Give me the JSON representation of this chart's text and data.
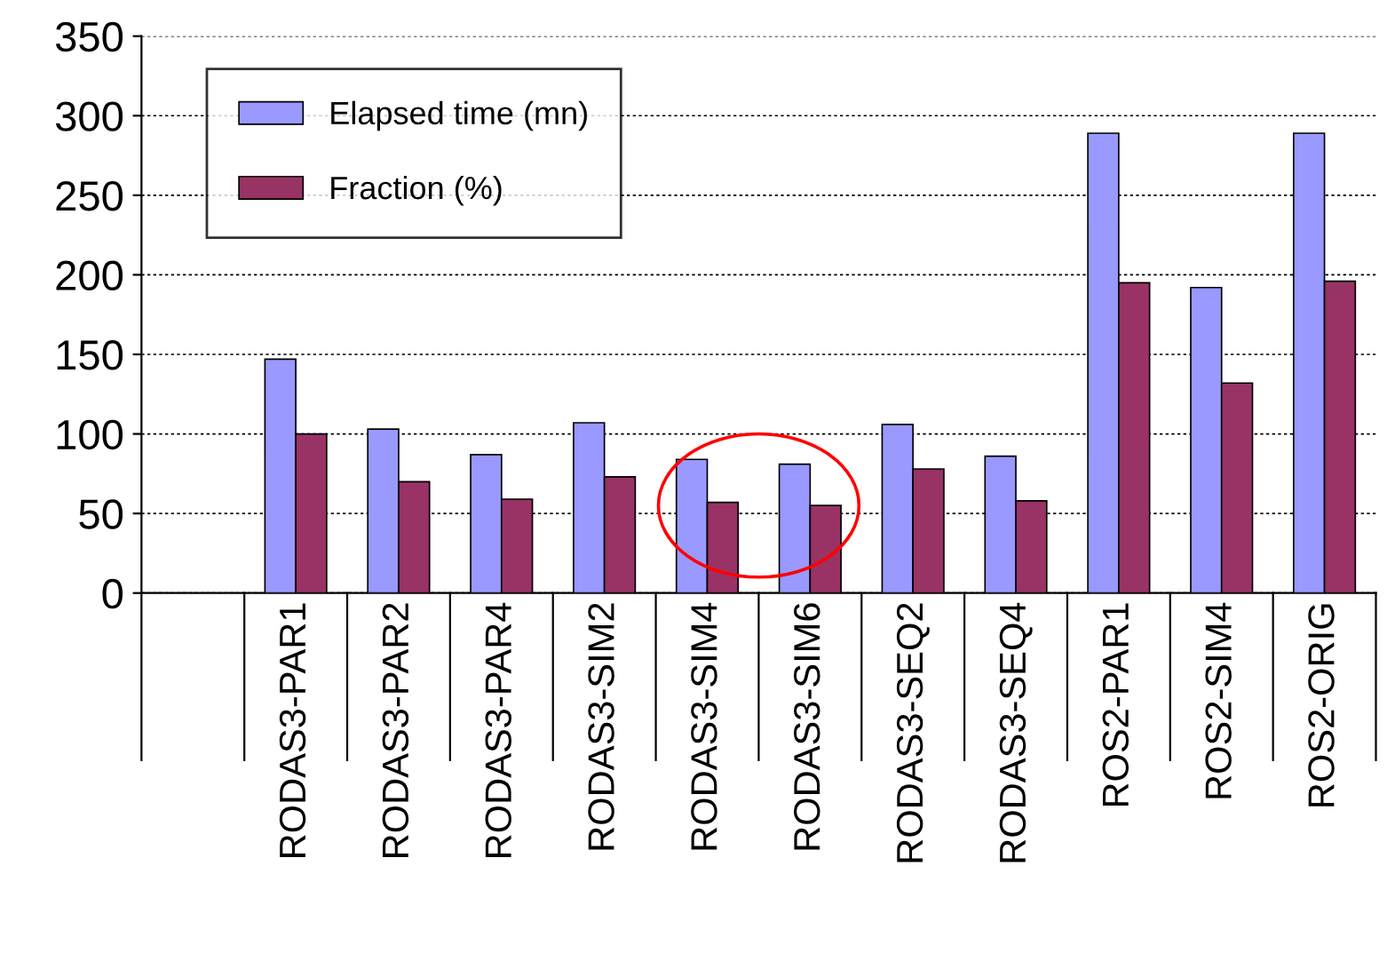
{
  "chart_data": {
    "type": "bar",
    "categories": [
      null,
      "RODAS3-PAR1",
      "RODAS3-PAR2",
      "RODAS3-PAR4",
      "RODAS3-SIM2",
      "RODAS3-SIM4",
      "RODAS3-SIM6",
      "RODAS3-SEQ2",
      "RODAS3-SEQ4",
      "ROS2-PAR1",
      "ROS2-SIM4",
      "ROS2-ORIG"
    ],
    "series": [
      {
        "name": "Elapsed time (mn)",
        "color": "#9999ff",
        "values": [
          null,
          147,
          103,
          87,
          107,
          84,
          81,
          106,
          86,
          289,
          192,
          289
        ]
      },
      {
        "name": "Fraction (%)",
        "color": "#993366",
        "values": [
          null,
          100,
          70,
          59,
          73,
          57,
          55,
          78,
          58,
          195,
          132,
          196
        ]
      }
    ],
    "ylim": [
      0,
      350
    ],
    "yticks": [
      0,
      50,
      100,
      150,
      200,
      250,
      300,
      350
    ],
    "grid": "y",
    "legend": "top left"
  }
}
